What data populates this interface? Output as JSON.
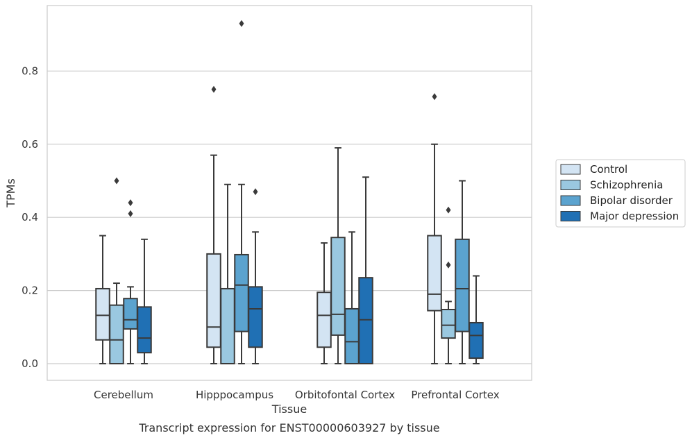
{
  "caption": "Transcript expression for ENST00000603927 by tissue",
  "chart_data": {
    "type": "box",
    "xlabel": "Tissue",
    "ylabel": "TPMs",
    "categories": [
      "Cerebellum",
      "Hipppocampus",
      "Orbitofontal Cortex",
      "Prefrontal Cortex"
    ],
    "ylim": [
      -0.045,
      0.98
    ],
    "yticks": [
      0.0,
      0.2,
      0.4,
      0.6,
      0.8
    ],
    "ytick_labels": [
      "0.0",
      "0.2",
      "0.4",
      "0.6",
      "0.8"
    ],
    "grid": "horizontal",
    "legend_position": "right",
    "series": [
      {
        "name": "Control",
        "color": "#d3e4f3",
        "boxes": [
          {
            "whislo": 0.0,
            "q1": 0.065,
            "med": 0.132,
            "q3": 0.205,
            "whishi": 0.35,
            "fliers": []
          },
          {
            "whislo": 0.0,
            "q1": 0.045,
            "med": 0.1,
            "q3": 0.3,
            "whishi": 0.57,
            "fliers": [
              0.75
            ]
          },
          {
            "whislo": 0.0,
            "q1": 0.045,
            "med": 0.132,
            "q3": 0.195,
            "whishi": 0.33,
            "fliers": []
          },
          {
            "whislo": 0.0,
            "q1": 0.145,
            "med": 0.19,
            "q3": 0.35,
            "whishi": 0.6,
            "fliers": [
              0.73
            ]
          }
        ]
      },
      {
        "name": "Schizophrenia",
        "color": "#9ac8e0",
        "boxes": [
          {
            "whislo": 0.0,
            "q1": 0.0,
            "med": 0.065,
            "q3": 0.16,
            "whishi": 0.22,
            "fliers": [
              0.5
            ]
          },
          {
            "whislo": 0.0,
            "q1": 0.0,
            "med": 0.0,
            "q3": 0.205,
            "whishi": 0.49,
            "fliers": []
          },
          {
            "whislo": 0.0,
            "q1": 0.078,
            "med": 0.135,
            "q3": 0.345,
            "whishi": 0.59,
            "fliers": []
          },
          {
            "whislo": 0.0,
            "q1": 0.07,
            "med": 0.105,
            "q3": 0.148,
            "whishi": 0.17,
            "fliers": [
              0.27,
              0.42
            ]
          }
        ]
      },
      {
        "name": "Bipolar disorder",
        "color": "#5ba3cf",
        "boxes": [
          {
            "whislo": 0.0,
            "q1": 0.095,
            "med": 0.12,
            "q3": 0.178,
            "whishi": 0.21,
            "fliers": [
              0.41,
              0.44
            ]
          },
          {
            "whislo": 0.0,
            "q1": 0.088,
            "med": 0.215,
            "q3": 0.298,
            "whishi": 0.49,
            "fliers": [
              0.93
            ]
          },
          {
            "whislo": 0.0,
            "q1": 0.0,
            "med": 0.06,
            "q3": 0.15,
            "whishi": 0.36,
            "fliers": []
          },
          {
            "whislo": 0.0,
            "q1": 0.088,
            "med": 0.205,
            "q3": 0.34,
            "whishi": 0.5,
            "fliers": []
          }
        ]
      },
      {
        "name": "Major depression",
        "color": "#2070b4",
        "boxes": [
          {
            "whislo": 0.0,
            "q1": 0.03,
            "med": 0.07,
            "q3": 0.155,
            "whishi": 0.34,
            "fliers": []
          },
          {
            "whislo": 0.0,
            "q1": 0.045,
            "med": 0.15,
            "q3": 0.21,
            "whishi": 0.36,
            "fliers": [
              0.47
            ]
          },
          {
            "whislo": 0.0,
            "q1": 0.0,
            "med": 0.12,
            "q3": 0.235,
            "whishi": 0.51,
            "fliers": []
          },
          {
            "whislo": 0.0,
            "q1": 0.015,
            "med": 0.077,
            "q3": 0.112,
            "whishi": 0.24,
            "fliers": []
          }
        ]
      }
    ]
  }
}
